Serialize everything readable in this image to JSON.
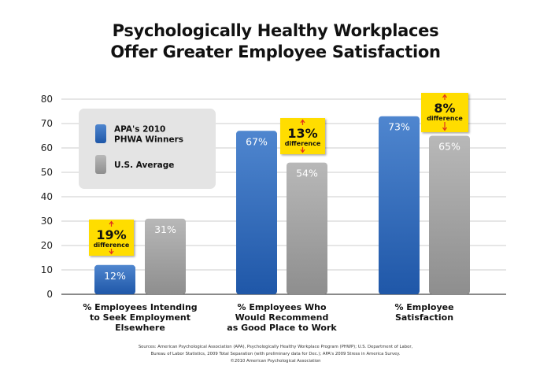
{
  "title_lines": [
    "Psychologically Healthy Workplaces",
    "Offer Greater Employee Satisfaction"
  ],
  "colors": {
    "apa": "#1f57a8",
    "apa_light": "#4f86cf",
    "us": "#8e8e8e",
    "us_light": "#b8b8b8",
    "callout": "#ffdd00",
    "arrow": "#e0301e",
    "legend_bg": "#e4e4e4",
    "grid": "#cccccc"
  },
  "chart_data": {
    "type": "bar",
    "title": "Psychologically Healthy Workplaces Offer Greater Employee Satisfaction",
    "xlabel": "",
    "ylabel": "",
    "ylim": [
      0,
      80
    ],
    "yticks": [
      0,
      10,
      20,
      30,
      40,
      50,
      60,
      70,
      80
    ],
    "grid": true,
    "legend_position": "top-left",
    "categories": [
      [
        "% Employees Intending",
        "to Seek Employment",
        "Elsewhere"
      ],
      [
        "% Employees Who",
        "Would Recommend",
        "as Good Place to Work"
      ],
      [
        "% Employee",
        "Satisfaction"
      ]
    ],
    "series": [
      {
        "name": "APA's 2010 PHWA Winners",
        "name_lines": [
          "APA's 2010",
          "PHWA Winners"
        ],
        "values": [
          12,
          67,
          73
        ],
        "labels": [
          "12%",
          "67%",
          "73%"
        ]
      },
      {
        "name": "U.S. Average",
        "name_lines": [
          "U.S. Average"
        ],
        "values": [
          31,
          54,
          65
        ],
        "labels": [
          "31%",
          "54%",
          "65%"
        ]
      }
    ],
    "annotations": [
      {
        "category": 0,
        "value": "19%",
        "text": "difference"
      },
      {
        "category": 1,
        "value": "13%",
        "text": "difference"
      },
      {
        "category": 2,
        "value": "8%",
        "text": "difference"
      }
    ]
  },
  "sources_lines": [
    "Sources: American Psychological Association (APA), Psychologically Healthy Workplace Program (PHWP); U.S. Department of Labor,",
    "Bureau of Labor Statistics, 2009 Total Separation (with preliminary data for Dec.); APA's 2009 Stress in America Survey.",
    "©2010 American Psychological Association"
  ]
}
